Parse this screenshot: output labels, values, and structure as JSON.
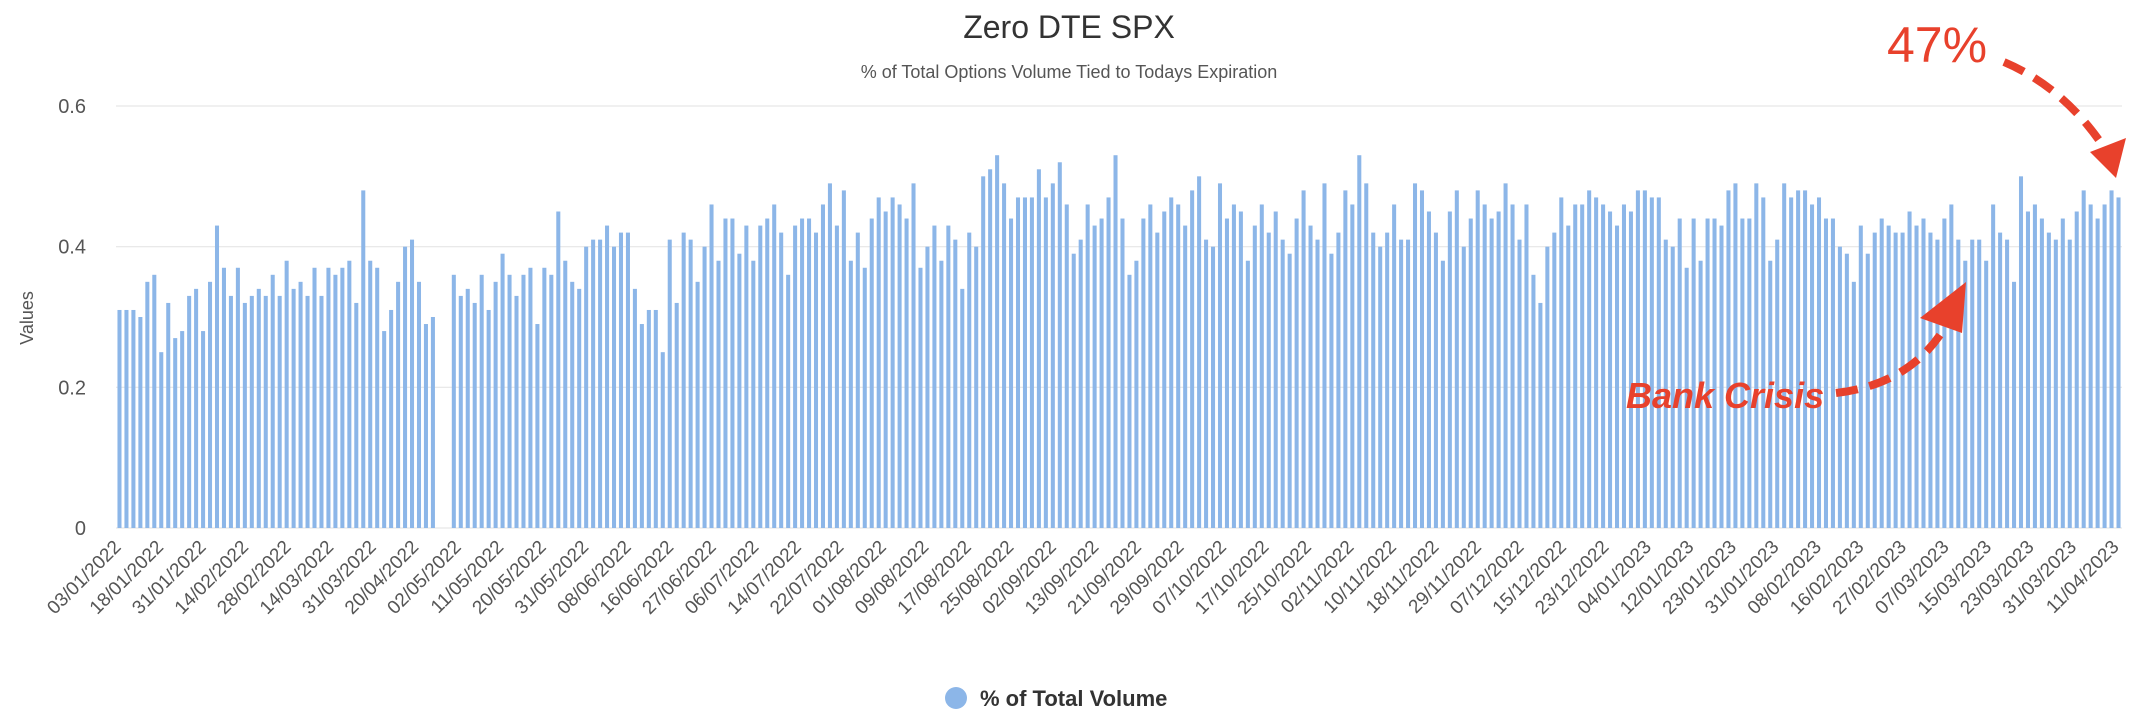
{
  "chart_data": {
    "type": "bar",
    "title": "Zero DTE SPX",
    "subtitle": "% of Total Options Volume Tied to Todays Expiration",
    "ylabel": "Values",
    "xlabel": "",
    "ylim": [
      0,
      0.6
    ],
    "yticks": [
      0,
      0.2,
      0.4,
      0.6
    ],
    "ytick_labels": [
      "0",
      "0.2",
      "0.4",
      "0.6"
    ],
    "grid": true,
    "legend": {
      "label": "% of Total Volume",
      "position": "bottom-center"
    },
    "series": [
      {
        "name": "% of Total Volume",
        "values": [
          0.31,
          0.31,
          0.31,
          0.3,
          0.35,
          0.36,
          0.25,
          0.32,
          0.27,
          0.28,
          0.33,
          0.34,
          0.28,
          0.35,
          0.43,
          0.37,
          0.33,
          0.37,
          0.32,
          0.33,
          0.34,
          0.33,
          0.36,
          0.33,
          0.38,
          0.34,
          0.35,
          0.33,
          0.37,
          0.33,
          0.37,
          0.36,
          0.37,
          0.38,
          0.32,
          0.48,
          0.38,
          0.37,
          0.28,
          0.31,
          0.35,
          0.4,
          0.41,
          0.35,
          0.29,
          0.3,
          null,
          null,
          0.36,
          0.33,
          0.34,
          0.32,
          0.36,
          0.31,
          0.35,
          0.39,
          0.36,
          0.33,
          0.36,
          0.37,
          0.29,
          0.37,
          0.36,
          0.45,
          0.38,
          0.35,
          0.34,
          0.4,
          0.41,
          0.41,
          0.43,
          0.4,
          0.42,
          0.42,
          0.34,
          0.29,
          0.31,
          0.31,
          0.25,
          0.41,
          0.32,
          0.42,
          0.41,
          0.35,
          0.4,
          0.46,
          0.38,
          0.44,
          0.44,
          0.39,
          0.43,
          0.38,
          0.43,
          0.44,
          0.46,
          0.42,
          0.36,
          0.43,
          0.44,
          0.44,
          0.42,
          0.46,
          0.49,
          0.43,
          0.48,
          0.38,
          0.42,
          0.37,
          0.44,
          0.47,
          0.45,
          0.47,
          0.46,
          0.44,
          0.49,
          0.37,
          0.4,
          0.43,
          0.38,
          0.43,
          0.41,
          0.34,
          0.42,
          0.4,
          0.5,
          0.51,
          0.53,
          0.49,
          0.44,
          0.47,
          0.47,
          0.47,
          0.51,
          0.47,
          0.49,
          0.52,
          0.46,
          0.39,
          0.41,
          0.46,
          0.43,
          0.44,
          0.47,
          0.53,
          0.44,
          0.36,
          0.38,
          0.44,
          0.46,
          0.42,
          0.45,
          0.47,
          0.46,
          0.43,
          0.48,
          0.5,
          0.41,
          0.4,
          0.49,
          0.44,
          0.46,
          0.45,
          0.38,
          0.43,
          0.46,
          0.42,
          0.45,
          0.41,
          0.39,
          0.44,
          0.48,
          0.43,
          0.41,
          0.49,
          0.39,
          0.42,
          0.48,
          0.46,
          0.53,
          0.49,
          0.42,
          0.4,
          0.42,
          0.46,
          0.41,
          0.41,
          0.49,
          0.48,
          0.45,
          0.42,
          0.38,
          0.45,
          0.48,
          0.4,
          0.44,
          0.48,
          0.46,
          0.44,
          0.45,
          0.49,
          0.46,
          0.41,
          0.46,
          0.36,
          0.32,
          0.4,
          0.42,
          0.47,
          0.43,
          0.46,
          0.46,
          0.48,
          0.47,
          0.46,
          0.45,
          0.43,
          0.46,
          0.45,
          0.48,
          0.48,
          0.47,
          0.47,
          0.41,
          0.4,
          0.44,
          0.37,
          0.44,
          0.38,
          0.44,
          0.44,
          0.43,
          0.48,
          0.49,
          0.44,
          0.44,
          0.49,
          0.47,
          0.38,
          0.41,
          0.49,
          0.47,
          0.48,
          0.48,
          0.46,
          0.47,
          0.44,
          0.44,
          0.4,
          0.39,
          0.35,
          0.43,
          0.39,
          0.42,
          0.44,
          0.43,
          0.42,
          0.42,
          0.45,
          0.43,
          0.44,
          0.42,
          0.41,
          0.44,
          0.46,
          0.41,
          0.38,
          0.41,
          0.41,
          0.38,
          0.46,
          0.42,
          0.41,
          0.35,
          0.5,
          0.45,
          0.46,
          0.44,
          0.42,
          0.41,
          0.44,
          0.41,
          0.45,
          0.48,
          0.46,
          0.44,
          0.46,
          0.48,
          0.47
        ],
        "color": "#8cb6e8"
      }
    ],
    "x_tick_labels": [
      "03/01/2022",
      "18/01/2022",
      "31/01/2022",
      "14/02/2022",
      "28/02/2022",
      "14/03/2022",
      "31/03/2022",
      "20/04/2022",
      "02/05/2022",
      "11/05/2022",
      "20/05/2022",
      "31/05/2022",
      "08/06/2022",
      "16/06/2022",
      "27/06/2022",
      "06/07/2022",
      "14/07/2022",
      "22/07/2022",
      "01/08/2022",
      "09/08/2022",
      "17/08/2022",
      "25/08/2022",
      "02/09/2022",
      "13/09/2022",
      "21/09/2022",
      "29/09/2022",
      "07/10/2022",
      "17/10/2022",
      "25/10/2022",
      "02/11/2022",
      "10/11/2022",
      "18/11/2022",
      "29/11/2022",
      "07/12/2022",
      "15/12/2022",
      "23/12/2022",
      "04/01/2023",
      "12/01/2023",
      "23/01/2023",
      "31/01/2023",
      "08/02/2023",
      "16/02/2023",
      "27/02/2023",
      "07/03/2023",
      "15/03/2023",
      "23/03/2023",
      "31/03/2023",
      "11/04/2023"
    ],
    "annotations": [
      {
        "text": "47%",
        "target": "last bar",
        "color": "#e8412c"
      },
      {
        "text": "Bank Crisis",
        "target": "March 2023 bars",
        "color": "#e8412c"
      }
    ]
  },
  "colors": {
    "bar": "#8cb6e8",
    "grid": "#e6e6e6",
    "annotation": "#e8412c",
    "text": "#333333"
  }
}
